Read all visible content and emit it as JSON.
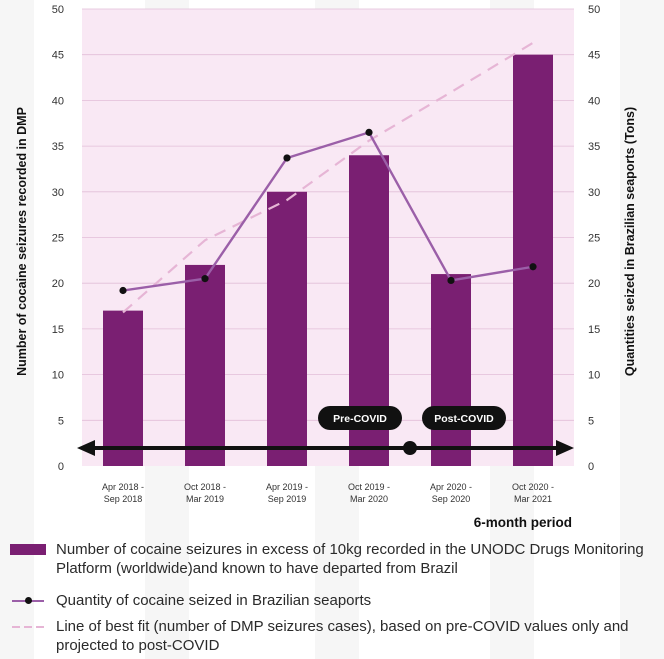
{
  "chart_data": {
    "type": "bar",
    "categories": [
      [
        "Apr 2018 -",
        "Sep 2018"
      ],
      [
        "Oct 2018 -",
        "Mar 2019"
      ],
      [
        "Apr 2019 -",
        "Sep 2019"
      ],
      [
        "Oct 2019 -",
        "Mar 2020"
      ],
      [
        "Apr 2020 -",
        "Sep 2020"
      ],
      [
        "Oct 2020 -",
        "Mar 2021"
      ]
    ],
    "series": [
      {
        "name": "Number of cocaine seizures in excess of 10kg recorded in the UNODC Drugs Monitoring Platform (worldwide)and known to have departed from Brazil",
        "type": "bar",
        "axis": "left",
        "values": [
          17,
          22,
          30,
          34,
          21,
          45
        ],
        "color": "#7a1f72"
      },
      {
        "name": "Quantity of cocaine seized in Brazilian seaports",
        "type": "line-markers",
        "axis": "right",
        "values": [
          19.2,
          20.5,
          33.7,
          36.5,
          20.3,
          21.8
        ],
        "color": "#9b5fa8"
      },
      {
        "name": "Line of best fit (number of DMP seizures cases), based on pre-COVID values only and projected to post-COVID",
        "type": "dashed-line",
        "axis": "left",
        "values": [
          16.8,
          24.7,
          29.1,
          35.6,
          40.9,
          46.3
        ],
        "color": "#e6b5d5"
      }
    ],
    "ylabel": "Number of cocaine seizures recorded in DMP",
    "y2label": "Quantities seized in Brazilian seaports (Tons)",
    "xlabel": "6-month period",
    "ylim": [
      0,
      50
    ],
    "y2lim": [
      0,
      50
    ],
    "yticks": [
      "0",
      "5",
      "10",
      "15",
      "20",
      "25",
      "30",
      "35",
      "40",
      "45",
      "50"
    ],
    "y2ticks": [
      "0",
      "5",
      "10",
      "15",
      "20",
      "25",
      "30",
      "35",
      "40",
      "45",
      "50"
    ],
    "annotations": [
      {
        "label": "Pre-COVID",
        "x_category_index": 3,
        "side": "left"
      },
      {
        "label": "Post-COVID",
        "x_category_index": 4,
        "side": "right"
      }
    ],
    "timeline_divider_between": [
      3,
      4
    ],
    "grid": true,
    "legend_position": "bottom",
    "colors": {
      "plot_background": "#f9e8f4",
      "gridline": "#e2bed8",
      "timeline": "#111111",
      "label_pill": "#111111"
    }
  }
}
